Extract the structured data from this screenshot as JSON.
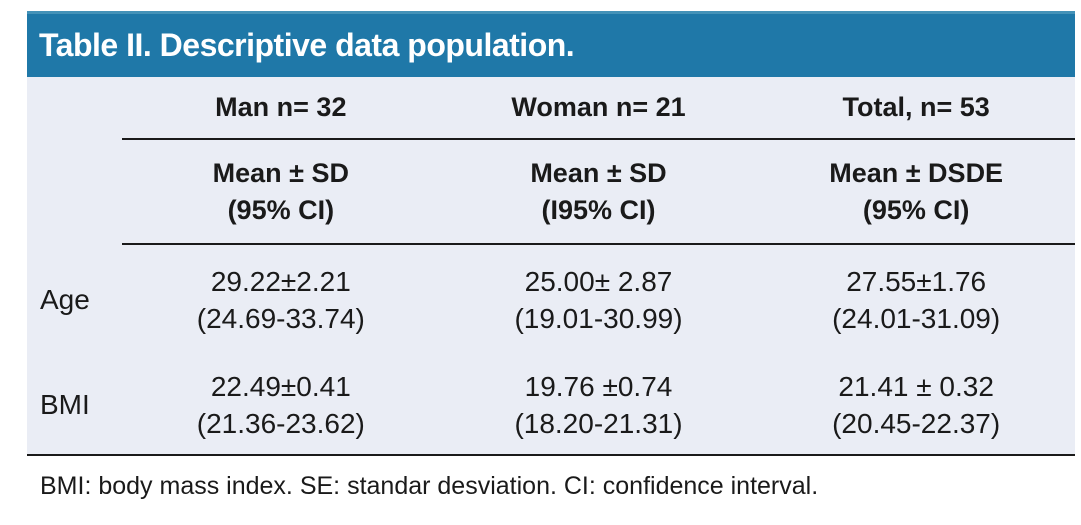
{
  "table": {
    "title": "Table II. Descriptive data population.",
    "group_headers": [
      "Man n= 32",
      "Woman n= 21",
      "Total, n= 53"
    ],
    "sub_headers": [
      {
        "line1": "Mean ± SD",
        "line2": "(95% CI)"
      },
      {
        "line1": "Mean ± SD",
        "line2": "(I95% CI)"
      },
      {
        "line1": "Mean ± DSDE",
        "line2": "(95% CI)"
      }
    ],
    "rows": [
      {
        "label": "Age",
        "cells": [
          {
            "line1": "29.22±2.21",
            "line2": "(24.69-33.74)"
          },
          {
            "line1": "25.00± 2.87",
            "line2": "(19.01-30.99)"
          },
          {
            "line1": "27.55±1.76",
            "line2": "(24.01-31.09)"
          }
        ]
      },
      {
        "label": "BMI",
        "cells": [
          {
            "line1": "22.49±0.41",
            "line2": "(21.36-23.62)"
          },
          {
            "line1": "19.76 ±0.74",
            "line2": "(18.20-21.31)"
          },
          {
            "line1": "21.41 ± 0.32",
            "line2": "(20.45-22.37)"
          }
        ]
      }
    ],
    "footnote": "BMI: body mass index. SE: standar desviation. CI: confidence interval."
  },
  "colors": {
    "title_bar_blue": "#1f78a8",
    "title_bar_top_edge": "#4492b8",
    "body_background": "#eaedf5",
    "text": "#1a1a1a",
    "rule_line": "#1a1a1a"
  },
  "chart_data": {
    "type": "table",
    "title": "Table II. Descriptive data population.",
    "columns": [
      "",
      "Man n= 32 Mean ± SD (95% CI)",
      "Woman n= 21 Mean ± SD (I95% CI)",
      "Total, n= 53 Mean ± DSDE (95% CI)"
    ],
    "rows": [
      [
        "Age",
        "29.22±2.21 (24.69-33.74)",
        "25.00± 2.87 (19.01-30.99)",
        "27.55±1.76 (24.01-31.09)"
      ],
      [
        "BMI",
        "22.49±0.41 (21.36-23.62)",
        "19.76 ±0.74 (18.20-21.31)",
        "21.41 ± 0.32 (20.45-22.37)"
      ]
    ],
    "footnote": "BMI: body mass index. SE: standar desviation. CI: confidence interval."
  }
}
